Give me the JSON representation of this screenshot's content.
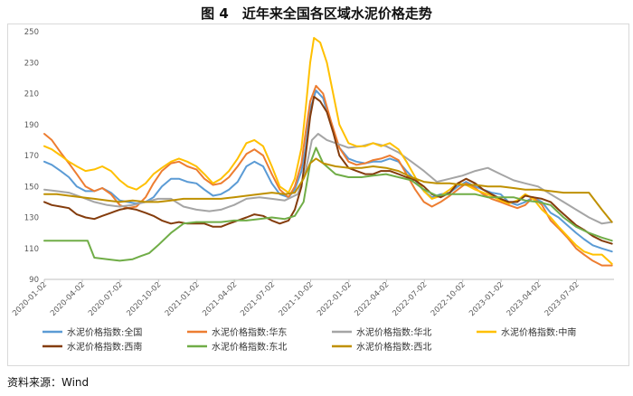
{
  "figure": {
    "title": "图 4　近年来全国各区域水泥价格走势",
    "source": "资料来源：Wind"
  },
  "chart_data": {
    "type": "line",
    "ylim": [
      90,
      250
    ],
    "yticks": [
      90,
      110,
      130,
      150,
      170,
      190,
      210,
      230,
      250
    ],
    "xlim": [
      "2020-01-02",
      "2023-09-30"
    ],
    "xticks": [
      "2020-01-02",
      "2020-04-02",
      "2020-07-02",
      "2020-10-02",
      "2021-01-02",
      "2021-04-02",
      "2021-07-02",
      "2021-10-02",
      "2022-01-02",
      "2022-04-02",
      "2022-07-02",
      "2022-10-02",
      "2023-01-02",
      "2023-04-02",
      "2023-07-02"
    ],
    "grid": false,
    "legend": "bottom",
    "series": [
      {
        "name": "水泥价格指数:全国",
        "color": "#5B9BD5",
        "x": [
          "2020-01-02",
          "2020-01-20",
          "2020-02-10",
          "2020-03-01",
          "2020-03-20",
          "2020-04-10",
          "2020-05-01",
          "2020-05-20",
          "2020-06-10",
          "2020-07-01",
          "2020-07-20",
          "2020-08-10",
          "2020-09-01",
          "2020-09-20",
          "2020-10-10",
          "2020-11-01",
          "2020-11-20",
          "2020-12-10",
          "2021-01-01",
          "2021-01-20",
          "2021-02-10",
          "2021-03-01",
          "2021-03-20",
          "2021-04-10",
          "2021-05-01",
          "2021-05-20",
          "2021-06-10",
          "2021-07-01",
          "2021-07-20",
          "2021-08-10",
          "2021-08-25",
          "2021-09-10",
          "2021-09-20",
          "2021-10-01",
          "2021-10-15",
          "2021-11-01",
          "2021-11-20",
          "2021-12-10",
          "2022-01-01",
          "2022-01-20",
          "2022-02-10",
          "2022-03-01",
          "2022-03-20",
          "2022-04-10",
          "2022-05-01",
          "2022-05-20",
          "2022-06-10",
          "2022-07-01",
          "2022-07-20",
          "2022-08-10",
          "2022-09-01",
          "2022-09-20",
          "2022-10-10",
          "2022-11-01",
          "2022-11-20",
          "2022-12-10",
          "2023-01-01",
          "2023-01-20",
          "2023-02-10",
          "2023-03-01",
          "2023-03-20",
          "2023-04-10",
          "2023-05-01",
          "2023-05-20",
          "2023-06-10",
          "2023-07-01",
          "2023-07-20",
          "2023-08-10",
          "2023-09-01",
          "2023-09-25"
        ],
        "values": [
          166,
          164,
          160,
          156,
          150,
          147,
          147,
          149,
          146,
          141,
          140,
          139,
          140,
          143,
          150,
          155,
          155,
          153,
          152,
          148,
          144,
          145,
          148,
          153,
          163,
          166,
          163,
          152,
          145,
          143,
          148,
          160,
          175,
          200,
          212,
          207,
          190,
          175,
          168,
          166,
          165,
          166,
          166,
          168,
          166,
          160,
          154,
          147,
          143,
          145,
          146,
          150,
          153,
          150,
          148,
          146,
          145,
          140,
          138,
          140,
          143,
          140,
          133,
          130,
          125,
          120,
          116,
          112,
          110,
          108
        ]
      },
      {
        "name": "水泥价格指数:华东",
        "color": "#ED7D31",
        "x": [
          "2020-01-02",
          "2020-01-20",
          "2020-02-10",
          "2020-03-01",
          "2020-03-20",
          "2020-04-10",
          "2020-05-01",
          "2020-05-20",
          "2020-06-10",
          "2020-07-01",
          "2020-07-20",
          "2020-08-10",
          "2020-09-01",
          "2020-09-20",
          "2020-10-10",
          "2020-11-01",
          "2020-11-20",
          "2020-12-10",
          "2021-01-01",
          "2021-01-20",
          "2021-02-10",
          "2021-03-01",
          "2021-03-20",
          "2021-04-10",
          "2021-05-01",
          "2021-05-20",
          "2021-06-10",
          "2021-07-01",
          "2021-07-20",
          "2021-08-10",
          "2021-08-25",
          "2021-09-10",
          "2021-09-20",
          "2021-10-01",
          "2021-10-15",
          "2021-11-01",
          "2021-11-20",
          "2021-12-10",
          "2022-01-01",
          "2022-01-20",
          "2022-02-10",
          "2022-03-01",
          "2022-03-20",
          "2022-04-10",
          "2022-05-01",
          "2022-05-20",
          "2022-06-10",
          "2022-07-01",
          "2022-07-20",
          "2022-08-10",
          "2022-09-01",
          "2022-09-20",
          "2022-10-10",
          "2022-11-01",
          "2022-11-20",
          "2022-12-10",
          "2023-01-01",
          "2023-01-20",
          "2023-02-10",
          "2023-03-01",
          "2023-03-20",
          "2023-04-10",
          "2023-05-01",
          "2023-05-20",
          "2023-06-10",
          "2023-07-01",
          "2023-07-20",
          "2023-08-10",
          "2023-09-01",
          "2023-09-25"
        ],
        "values": [
          184,
          180,
          172,
          165,
          158,
          150,
          147,
          149,
          145,
          138,
          136,
          137,
          143,
          152,
          160,
          165,
          166,
          163,
          161,
          155,
          151,
          152,
          156,
          163,
          171,
          174,
          170,
          158,
          148,
          143,
          150,
          165,
          185,
          205,
          215,
          210,
          192,
          175,
          166,
          164,
          165,
          167,
          168,
          170,
          167,
          158,
          148,
          140,
          137,
          140,
          144,
          148,
          152,
          149,
          145,
          142,
          140,
          138,
          136,
          138,
          143,
          138,
          128,
          123,
          117,
          110,
          106,
          102,
          99,
          99
        ]
      },
      {
        "name": "水泥价格指数:华北",
        "color": "#A5A5A5",
        "x": [
          "2020-01-02",
          "2020-02-01",
          "2020-03-01",
          "2020-04-01",
          "2020-05-01",
          "2020-06-01",
          "2020-07-01",
          "2020-08-01",
          "2020-09-01",
          "2020-10-01",
          "2020-11-01",
          "2020-12-01",
          "2021-01-01",
          "2021-02-01",
          "2021-03-01",
          "2021-04-01",
          "2021-05-01",
          "2021-06-01",
          "2021-07-01",
          "2021-08-01",
          "2021-09-01",
          "2021-09-20",
          "2021-10-05",
          "2021-10-20",
          "2021-11-10",
          "2021-12-01",
          "2022-01-01",
          "2022-02-01",
          "2022-03-01",
          "2022-04-01",
          "2022-05-01",
          "2022-06-01",
          "2022-07-01",
          "2022-08-01",
          "2022-09-01",
          "2022-10-01",
          "2022-11-01",
          "2022-12-01",
          "2023-01-01",
          "2023-02-01",
          "2023-03-01",
          "2023-04-01",
          "2023-05-01",
          "2023-06-01",
          "2023-07-01",
          "2023-08-01",
          "2023-09-01",
          "2023-09-25"
        ],
        "values": [
          148,
          147,
          146,
          143,
          140,
          138,
          137,
          138,
          140,
          142,
          142,
          137,
          135,
          134,
          135,
          138,
          142,
          143,
          142,
          141,
          145,
          160,
          180,
          184,
          180,
          178,
          175,
          176,
          178,
          176,
          172,
          166,
          160,
          153,
          155,
          157,
          160,
          162,
          158,
          154,
          152,
          150,
          145,
          140,
          135,
          130,
          126,
          127
        ]
      },
      {
        "name": "水泥价格指数:中南",
        "color": "#FFC000",
        "x": [
          "2020-01-02",
          "2020-01-20",
          "2020-02-10",
          "2020-03-01",
          "2020-03-20",
          "2020-04-10",
          "2020-05-01",
          "2020-05-20",
          "2020-06-10",
          "2020-07-01",
          "2020-07-20",
          "2020-08-10",
          "2020-09-01",
          "2020-09-20",
          "2020-10-10",
          "2020-11-01",
          "2020-11-20",
          "2020-12-10",
          "2021-01-01",
          "2021-01-20",
          "2021-02-10",
          "2021-03-01",
          "2021-03-20",
          "2021-04-10",
          "2021-05-01",
          "2021-05-20",
          "2021-06-10",
          "2021-07-01",
          "2021-07-20",
          "2021-08-10",
          "2021-08-25",
          "2021-09-10",
          "2021-09-20",
          "2021-10-01",
          "2021-10-10",
          "2021-10-25",
          "2021-11-10",
          "2021-11-25",
          "2021-12-10",
          "2022-01-01",
          "2022-01-20",
          "2022-02-10",
          "2022-03-01",
          "2022-03-20",
          "2022-04-10",
          "2022-05-01",
          "2022-05-20",
          "2022-06-10",
          "2022-07-01",
          "2022-07-20",
          "2022-08-10",
          "2022-09-01",
          "2022-09-20",
          "2022-10-10",
          "2022-11-01",
          "2022-11-20",
          "2022-12-10",
          "2023-01-01",
          "2023-01-20",
          "2023-02-10",
          "2023-03-01",
          "2023-03-20",
          "2023-04-10",
          "2023-05-01",
          "2023-05-20",
          "2023-06-10",
          "2023-07-01",
          "2023-07-20",
          "2023-08-10",
          "2023-09-01",
          "2023-09-25"
        ],
        "values": [
          176,
          174,
          170,
          166,
          163,
          160,
          161,
          163,
          160,
          154,
          150,
          148,
          152,
          158,
          162,
          166,
          168,
          166,
          163,
          158,
          152,
          155,
          160,
          168,
          178,
          180,
          176,
          163,
          150,
          146,
          155,
          175,
          200,
          230,
          246,
          243,
          230,
          210,
          190,
          178,
          176,
          176,
          178,
          176,
          178,
          174,
          166,
          156,
          147,
          142,
          144,
          148,
          152,
          151,
          148,
          146,
          144,
          141,
          139,
          141,
          145,
          142,
          135,
          130,
          124,
          118,
          112,
          108,
          106,
          106,
          100
        ]
      },
      {
        "name": "水泥价格指数:西南",
        "color": "#843C0C",
        "x": [
          "2020-01-02",
          "2020-01-20",
          "2020-02-10",
          "2020-03-01",
          "2020-03-20",
          "2020-04-10",
          "2020-05-01",
          "2020-05-20",
          "2020-06-10",
          "2020-07-01",
          "2020-07-20",
          "2020-08-10",
          "2020-09-01",
          "2020-09-20",
          "2020-10-10",
          "2020-11-01",
          "2020-11-20",
          "2020-12-10",
          "2021-01-01",
          "2021-01-20",
          "2021-02-10",
          "2021-03-01",
          "2021-03-20",
          "2021-04-10",
          "2021-05-01",
          "2021-05-20",
          "2021-06-10",
          "2021-07-01",
          "2021-07-20",
          "2021-08-10",
          "2021-08-25",
          "2021-09-10",
          "2021-09-20",
          "2021-10-01",
          "2021-10-10",
          "2021-10-25",
          "2021-11-10",
          "2021-11-25",
          "2021-12-10",
          "2022-01-01",
          "2022-01-20",
          "2022-02-10",
          "2022-03-01",
          "2022-03-20",
          "2022-04-10",
          "2022-05-01",
          "2022-05-20",
          "2022-06-10",
          "2022-07-01",
          "2022-07-20",
          "2022-08-10",
          "2022-09-01",
          "2022-09-20",
          "2022-10-10",
          "2022-11-01",
          "2022-11-20",
          "2022-12-10",
          "2023-01-01",
          "2023-01-20",
          "2023-02-10",
          "2023-03-01",
          "2023-03-20",
          "2023-04-10",
          "2023-05-01",
          "2023-05-20",
          "2023-06-10",
          "2023-07-01",
          "2023-07-20",
          "2023-08-10",
          "2023-09-01",
          "2023-09-25"
        ],
        "values": [
          140,
          138,
          137,
          136,
          132,
          130,
          129,
          131,
          133,
          135,
          136,
          135,
          133,
          131,
          128,
          126,
          127,
          126,
          126,
          126,
          124,
          124,
          126,
          128,
          130,
          132,
          131,
          128,
          126,
          128,
          135,
          150,
          170,
          195,
          208,
          205,
          198,
          185,
          170,
          162,
          160,
          158,
          158,
          160,
          160,
          158,
          156,
          154,
          150,
          145,
          143,
          146,
          152,
          155,
          152,
          148,
          145,
          142,
          140,
          140,
          144,
          143,
          142,
          140,
          135,
          130,
          125,
          122,
          118,
          115,
          113
        ]
      },
      {
        "name": "水泥价格指数:东北",
        "color": "#70AD47",
        "x": [
          "2020-01-02",
          "2020-02-01",
          "2020-03-01",
          "2020-04-01",
          "2020-04-15",
          "2020-05-01",
          "2020-06-01",
          "2020-07-01",
          "2020-08-01",
          "2020-08-20",
          "2020-09-10",
          "2020-10-01",
          "2020-11-01",
          "2020-12-01",
          "2021-01-01",
          "2021-02-01",
          "2021-03-01",
          "2021-04-01",
          "2021-05-01",
          "2021-06-01",
          "2021-07-01",
          "2021-08-01",
          "2021-08-25",
          "2021-09-15",
          "2021-10-01",
          "2021-10-15",
          "2021-11-01",
          "2021-12-01",
          "2022-01-01",
          "2022-02-01",
          "2022-03-01",
          "2022-04-01",
          "2022-05-01",
          "2022-06-01",
          "2022-07-01",
          "2022-08-01",
          "2022-09-01",
          "2022-10-01",
          "2022-11-01",
          "2022-12-01",
          "2023-01-01",
          "2023-02-01",
          "2023-03-01",
          "2023-04-01",
          "2023-05-01",
          "2023-06-01",
          "2023-07-01",
          "2023-08-01",
          "2023-09-01",
          "2023-09-25"
        ],
        "values": [
          115,
          115,
          115,
          115,
          115,
          104,
          103,
          102,
          103,
          105,
          107,
          112,
          120,
          126,
          127,
          127,
          127,
          128,
          128,
          129,
          130,
          129,
          131,
          140,
          165,
          175,
          165,
          158,
          156,
          156,
          157,
          158,
          156,
          154,
          148,
          144,
          145,
          145,
          145,
          143,
          143,
          143,
          141,
          140,
          138,
          130,
          124,
          120,
          117,
          115
        ]
      },
      {
        "name": "水泥价格指数:西北",
        "color": "#BF9000",
        "x": [
          "2020-01-02",
          "2020-02-01",
          "2020-03-01",
          "2020-04-01",
          "2020-05-01",
          "2020-06-01",
          "2020-07-01",
          "2020-08-01",
          "2020-09-01",
          "2020-10-01",
          "2020-11-01",
          "2020-12-01",
          "2021-01-01",
          "2021-02-01",
          "2021-03-01",
          "2021-04-01",
          "2021-05-01",
          "2021-06-01",
          "2021-07-01",
          "2021-08-01",
          "2021-08-25",
          "2021-09-15",
          "2021-10-01",
          "2021-10-15",
          "2021-11-01",
          "2021-12-01",
          "2022-01-01",
          "2022-02-01",
          "2022-03-01",
          "2022-04-01",
          "2022-05-01",
          "2022-06-01",
          "2022-07-01",
          "2022-08-01",
          "2022-09-01",
          "2022-10-01",
          "2022-11-01",
          "2022-12-01",
          "2023-01-01",
          "2023-02-01",
          "2023-03-01",
          "2023-04-01",
          "2023-05-01",
          "2023-06-01",
          "2023-07-01",
          "2023-08-01",
          "2023-09-01",
          "2023-09-25"
        ],
        "values": [
          145,
          145,
          144,
          143,
          142,
          141,
          140,
          141,
          140,
          140,
          141,
          142,
          142,
          142,
          142,
          143,
          144,
          145,
          146,
          145,
          146,
          155,
          165,
          168,
          165,
          163,
          162,
          162,
          163,
          162,
          160,
          156,
          153,
          152,
          152,
          151,
          151,
          150,
          150,
          149,
          148,
          148,
          147,
          146,
          146,
          146,
          135,
          127
        ]
      }
    ]
  }
}
